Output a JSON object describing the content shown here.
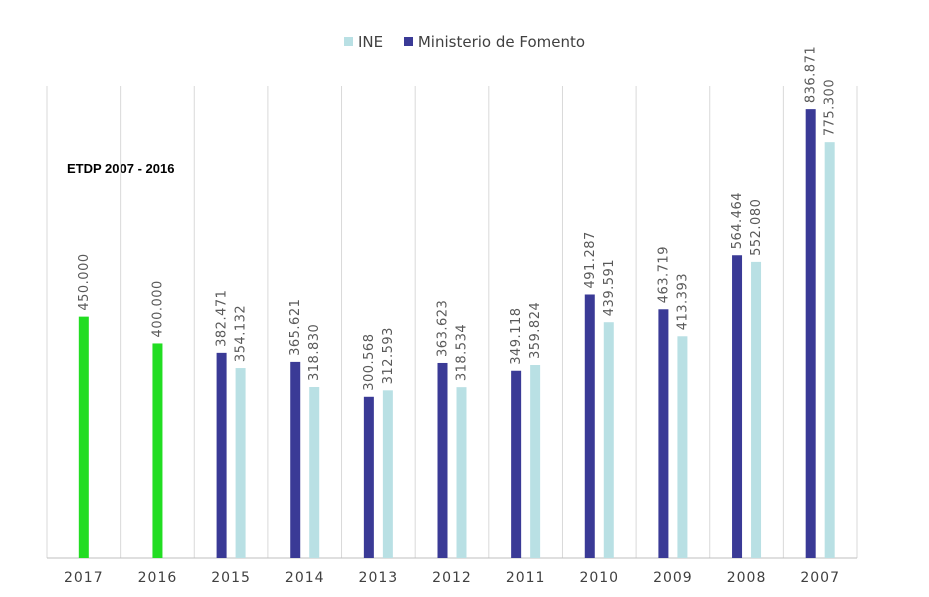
{
  "chart_data": {
    "type": "bar",
    "title": "",
    "xlabel": "",
    "ylabel": "",
    "ylim": [
      0,
      880000
    ],
    "grid": "vertical",
    "legend_position": "top-center",
    "categories": [
      "2017",
      "2016",
      "2015",
      "2014",
      "2013",
      "2012",
      "2011",
      "2010",
      "2009",
      "2008",
      "2007"
    ],
    "series": [
      {
        "name": "Ministerio de Fomento",
        "color": "#3a3a96",
        "values": [
          450000,
          400000,
          382471,
          365621,
          300568,
          363623,
          349118,
          491287,
          463719,
          564464,
          836871
        ],
        "labels": [
          "450.000",
          "400.000",
          "382.471",
          "365.621",
          "300.568",
          "363.623",
          "349.118",
          "491.287",
          "463.719",
          "564.464",
          "836.871"
        ],
        "highlight_color": "#22dd22",
        "highlight_categories": [
          "2017",
          "2016"
        ]
      },
      {
        "name": "INE",
        "color": "#b9e0e4",
        "values": [
          null,
          null,
          354132,
          318830,
          312593,
          318534,
          359824,
          439591,
          413393,
          552080,
          775300
        ],
        "labels": [
          null,
          null,
          "354.132",
          "318.830",
          "312.593",
          "318.534",
          "359.824",
          "439.591",
          "413.393",
          "552.080",
          "775.300"
        ]
      }
    ],
    "annotation": "ETDP 2007 - 2016"
  },
  "legend": {
    "items": [
      {
        "label": "INE",
        "color": "#b9e0e4"
      },
      {
        "label": "Ministerio de Fomento",
        "color": "#3a3a96"
      }
    ]
  }
}
